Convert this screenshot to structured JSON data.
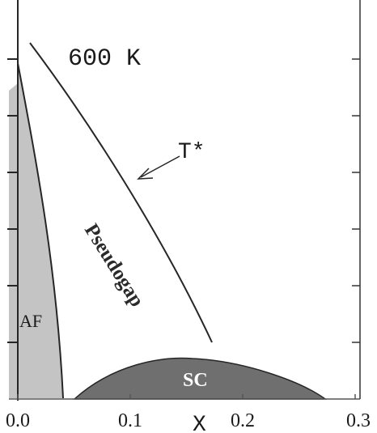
{
  "diagram": {
    "temperature_label": "600 K",
    "x_axis_label": "X",
    "x_ticks": [
      "0.0",
      "0.1",
      "0.2",
      "0.3"
    ],
    "regions": {
      "af_label": "AF",
      "sc_label": "SC",
      "pseudogap_label": "Pseudogap"
    },
    "crossover_label": "T*"
  },
  "colors": {
    "af_fill": "#c4c4c4",
    "sc_fill": "#6f6f6f",
    "line": "#262626",
    "background": "#ffffff"
  }
}
